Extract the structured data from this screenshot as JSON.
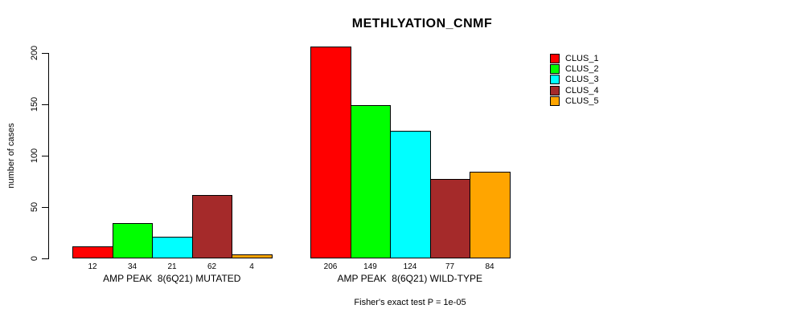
{
  "chart_data": {
    "type": "bar",
    "title": "METHLYATION_CNMF",
    "ylabel": "number of cases",
    "xlabel": "",
    "ylim": [
      0,
      200
    ],
    "yticks": [
      0,
      50,
      100,
      150,
      200
    ],
    "grid": false,
    "legend_position": "top-right",
    "series": [
      {
        "name": "CLUS_1",
        "color": "#FF0000"
      },
      {
        "name": "CLUS_2",
        "color": "#00FF00"
      },
      {
        "name": "CLUS_3",
        "color": "#00FFFF"
      },
      {
        "name": "CLUS_4",
        "color": "#A52A2A"
      },
      {
        "name": "CLUS_5",
        "color": "#FFA500"
      }
    ],
    "groups": [
      {
        "label": "AMP PEAK  8(6Q21) MUTATED",
        "values": [
          12,
          34,
          21,
          62,
          4
        ]
      },
      {
        "label": "AMP PEAK  8(6Q21) WILD-TYPE",
        "values": [
          206,
          149,
          124,
          77,
          84
        ]
      }
    ],
    "footer": "Fisher's exact test P = 1e-05"
  }
}
